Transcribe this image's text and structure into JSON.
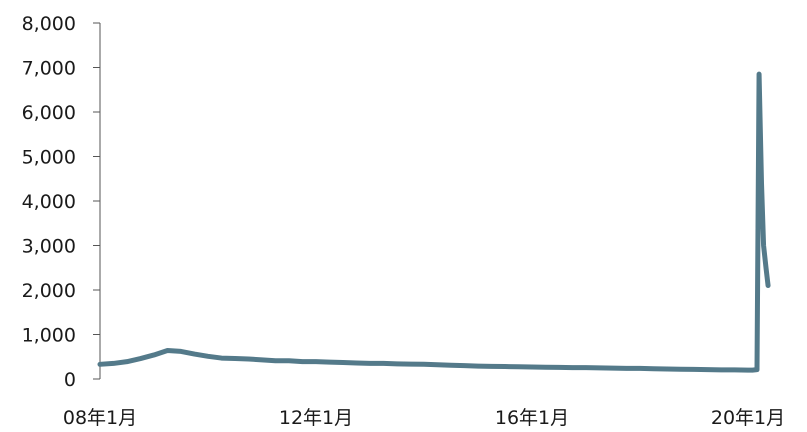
{
  "chart_data": {
    "type": "line",
    "title": "",
    "xlabel": "",
    "ylabel": "",
    "ylim": [
      0,
      8000
    ],
    "yticks": [
      {
        "value": 0,
        "label": "0"
      },
      {
        "value": 1000,
        "label": "1,000"
      },
      {
        "value": 2000,
        "label": "2,000"
      },
      {
        "value": 3000,
        "label": "3,000"
      },
      {
        "value": 4000,
        "label": "4,000"
      },
      {
        "value": 5000,
        "label": "5,000"
      },
      {
        "value": 6000,
        "label": "6,000"
      },
      {
        "value": 7000,
        "label": "7,000"
      },
      {
        "value": 8000,
        "label": "8,000"
      }
    ],
    "xticks": [
      {
        "value": "2008-01",
        "label": "08年1月"
      },
      {
        "value": "2012-01",
        "label": "12年1月"
      },
      {
        "value": "2016-01",
        "label": "16年1月"
      },
      {
        "value": "2020-01",
        "label": "20年1月"
      }
    ],
    "xlim": [
      "2008-01",
      "2020-07"
    ],
    "grid": false,
    "line_color": "#547a8a",
    "series": [
      {
        "x": [
          "2008-01",
          "2008-04",
          "2008-07",
          "2008-10",
          "2009-01",
          "2009-04",
          "2009-07",
          "2009-10",
          "2010-01",
          "2010-04",
          "2010-07",
          "2010-10",
          "2011-01",
          "2011-04",
          "2011-07",
          "2011-10",
          "2012-01",
          "2012-04",
          "2012-07",
          "2012-10",
          "2013-01",
          "2013-04",
          "2013-07",
          "2013-10",
          "2014-01",
          "2014-04",
          "2014-07",
          "2014-10",
          "2015-01",
          "2015-04",
          "2015-07",
          "2015-10",
          "2016-01",
          "2016-04",
          "2016-07",
          "2016-10",
          "2017-01",
          "2017-04",
          "2017-07",
          "2017-10",
          "2018-01",
          "2018-04",
          "2018-07",
          "2018-10",
          "2019-01",
          "2019-04",
          "2019-07",
          "2019-10",
          "2020-01",
          "2020-02",
          "2020-03",
          "2020-03-15",
          "2020-04",
          "2020-04-15",
          "2020-05",
          "2020-05-15"
        ],
        "values": [
          330,
          350,
          390,
          460,
          540,
          640,
          620,
          560,
          510,
          470,
          460,
          450,
          430,
          410,
          410,
          390,
          390,
          380,
          370,
          360,
          350,
          350,
          340,
          335,
          330,
          320,
          310,
          300,
          290,
          285,
          280,
          275,
          270,
          265,
          260,
          255,
          255,
          250,
          245,
          240,
          240,
          230,
          225,
          220,
          215,
          210,
          205,
          205,
          200,
          200,
          210,
          6850,
          4400,
          3000,
          2500,
          2100
        ]
      }
    ]
  }
}
